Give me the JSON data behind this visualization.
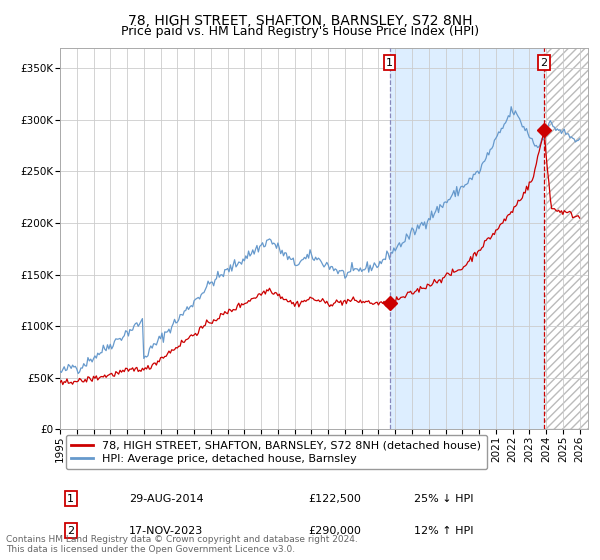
{
  "title": "78, HIGH STREET, SHAFTON, BARNSLEY, S72 8NH",
  "subtitle": "Price paid vs. HM Land Registry's House Price Index (HPI)",
  "ylim": [
    0,
    370000
  ],
  "yticks": [
    0,
    50000,
    100000,
    150000,
    200000,
    250000,
    300000,
    350000
  ],
  "ytick_labels": [
    "£0",
    "£50K",
    "£100K",
    "£150K",
    "£200K",
    "£250K",
    "£300K",
    "£350K"
  ],
  "xlim_start": 1995.0,
  "xlim_end": 2026.5,
  "grid_color": "#cccccc",
  "bg_color": "#ffffff",
  "plot_bg_color": "#ffffff",
  "highlight_bg": "#ddeeff",
  "red_line_color": "#cc0000",
  "blue_line_color": "#6699cc",
  "marker1_x": 2014.66,
  "marker1_y": 122500,
  "marker2_x": 2023.88,
  "marker2_y": 290000,
  "vline1_x": 2014.66,
  "vline2_x": 2023.88,
  "legend_label1": "78, HIGH STREET, SHAFTON, BARNSLEY, S72 8NH (detached house)",
  "legend_label2": "HPI: Average price, detached house, Barnsley",
  "annotation1_date": "29-AUG-2014",
  "annotation1_price": "£122,500",
  "annotation1_hpi": "25% ↓ HPI",
  "annotation2_date": "17-NOV-2023",
  "annotation2_price": "£290,000",
  "annotation2_hpi": "12% ↑ HPI",
  "footer": "Contains HM Land Registry data © Crown copyright and database right 2024.\nThis data is licensed under the Open Government Licence v3.0.",
  "title_fontsize": 10,
  "subtitle_fontsize": 9,
  "tick_fontsize": 7.5,
  "legend_fontsize": 8,
  "annot_fontsize": 8,
  "footer_fontsize": 6.5
}
